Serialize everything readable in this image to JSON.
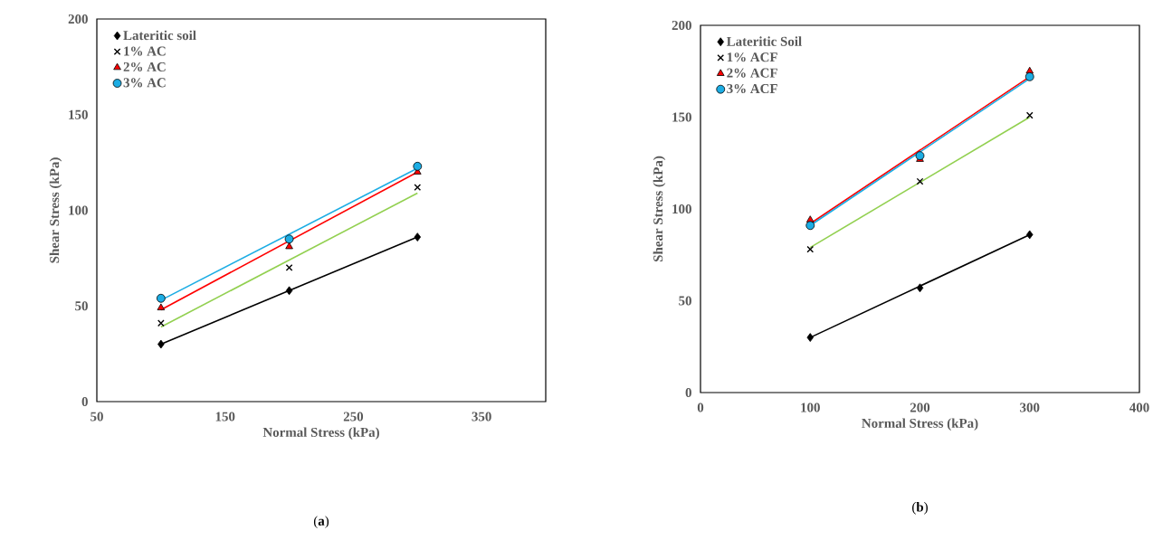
{
  "chart_data": [
    {
      "type": "scatter",
      "xlabel": "Normal Stress (kPa)",
      "ylabel": "Shear Stress (kPa)",
      "annotations": [
        "(**a**)"
      ],
      "xlim": [
        50,
        400
      ],
      "xticks": [
        50,
        150,
        250,
        350
      ],
      "ylim": [
        0,
        200
      ],
      "yticks": [
        0,
        50,
        100,
        150,
        200
      ],
      "legend": "top left",
      "grid": false,
      "series": [
        {
          "type": "line",
          "x": [
            100,
            300
          ],
          "values": [
            30,
            86
          ],
          "color": "#000000",
          "marker": "none"
        },
        {
          "type": "line",
          "x": [
            100,
            300
          ],
          "values": [
            39,
            109
          ],
          "color": "#92d050",
          "marker": "none"
        },
        {
          "type": "line",
          "x": [
            100,
            300
          ],
          "values": [
            48,
            120
          ],
          "color": "#ff0000",
          "marker": "none"
        },
        {
          "type": "line",
          "x": [
            100,
            300
          ],
          "values": [
            53,
            122
          ],
          "color": "#1cade4",
          "marker": "none"
        },
        {
          "name": "Lateritic soil",
          "x": [
            100,
            200,
            300
          ],
          "values": [
            30,
            58,
            86
          ],
          "color": "#000000",
          "marker": "diamond"
        },
        {
          "name": "1% AC",
          "x": [
            100,
            200,
            300
          ],
          "values": [
            41,
            70,
            112
          ],
          "color": "#000000",
          "marker": "cross"
        },
        {
          "name": "2% AC",
          "x": [
            100,
            200,
            300
          ],
          "values": [
            49,
            81,
            120
          ],
          "color": "#ff0000",
          "marker": "triangle"
        },
        {
          "name": "3% AC",
          "x": [
            100,
            200,
            300
          ],
          "values": [
            54,
            85,
            123
          ],
          "color": "#1cade4",
          "marker": "circle"
        }
      ]
    },
    {
      "type": "scatter",
      "xlabel": "Normal Stress (kPa)",
      "ylabel": "Shear Stress (kPa)",
      "annotations": [
        "(**b**)"
      ],
      "xlim": [
        0,
        400
      ],
      "xticks": [
        0,
        100,
        200,
        300,
        400
      ],
      "ylim": [
        0,
        200
      ],
      "yticks": [
        0,
        50,
        100,
        150,
        200
      ],
      "legend": "top left",
      "grid": false,
      "series": [
        {
          "type": "line",
          "x": [
            100,
            300
          ],
          "values": [
            30,
            86
          ],
          "color": "#000000",
          "marker": "none"
        },
        {
          "type": "line",
          "x": [
            100,
            300
          ],
          "values": [
            79,
            150
          ],
          "color": "#92d050",
          "marker": "none"
        },
        {
          "type": "line",
          "x": [
            100,
            300
          ],
          "values": [
            92,
            172
          ],
          "color": "#ff0000",
          "marker": "none"
        },
        {
          "type": "line",
          "x": [
            100,
            300
          ],
          "values": [
            91,
            171
          ],
          "color": "#1cade4",
          "marker": "none"
        },
        {
          "name": "Lateritic Soil",
          "x": [
            100,
            200,
            300
          ],
          "values": [
            30,
            57,
            86
          ],
          "color": "#000000",
          "marker": "diamond"
        },
        {
          "name": "1% ACF",
          "x": [
            100,
            200,
            300
          ],
          "values": [
            78,
            115,
            151
          ],
          "color": "#000000",
          "marker": "cross"
        },
        {
          "name": "2% ACF",
          "x": [
            100,
            200,
            300
          ],
          "values": [
            94,
            127,
            175
          ],
          "color": "#ff0000",
          "marker": "triangle"
        },
        {
          "name": "3% ACF",
          "x": [
            100,
            200,
            300
          ],
          "values": [
            91,
            129,
            172
          ],
          "color": "#1cade4",
          "marker": "circle"
        }
      ]
    }
  ]
}
